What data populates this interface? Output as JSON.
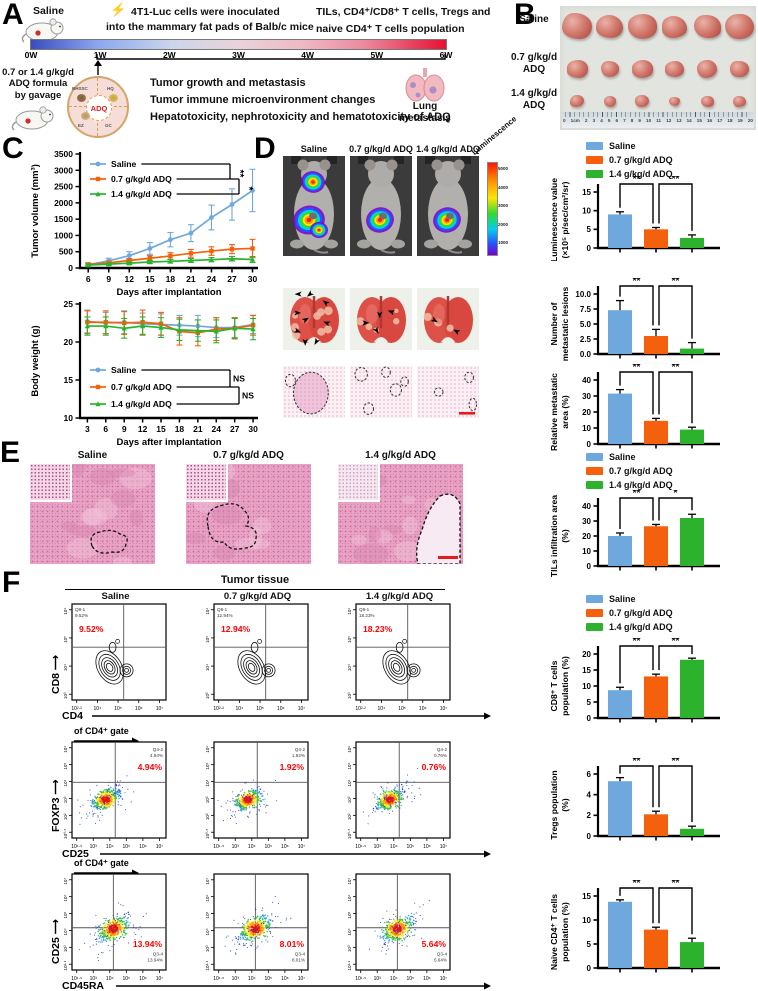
{
  "groups": {
    "names": [
      "Saline",
      "0.7 g/kg/d ADQ",
      "1.4 g/kg/d ADQ"
    ],
    "colors": [
      "#6FA8DC",
      "#F4600C",
      "#2CB22C"
    ]
  },
  "panelA": {
    "label": "A",
    "mouse1_caption": "Saline",
    "bolt_icon": "⚡",
    "inoculation_line1": "4T1-Luc cells were inoculated",
    "inoculation_line2": "into the mammary fat pads  of Balb/c mice",
    "right_line1": "TILs, CD4⁺/CD8⁺ T cells, Tregs and",
    "right_line2": "naive CD4⁺ T cells population",
    "timeline_ticks": [
      "0W",
      "1W",
      "2W",
      "3W",
      "4W",
      "5W",
      "6W"
    ],
    "gavage_lines": [
      "0.7 or 1.4 g/kg/d",
      "ADQ formula",
      "by gavage"
    ],
    "adq_center_label": "ADQ",
    "adq_segment_labels": [
      "BHSSC",
      "HQ",
      "EZ",
      "GC"
    ],
    "objective_lines": [
      "Tumor growth and metastasis",
      "Tumor immune microenvironment changes",
      "Hepatotoxicity, nephrotoxicity and hematotoxicity of ADQ"
    ],
    "lung_caption_line1": "Lung",
    "lung_caption_line2": "metastasis"
  },
  "panelB": {
    "label": "B",
    "row_labels": [
      [
        "Saline"
      ],
      [
        "0.7 g/kg/d",
        "ADQ"
      ],
      [
        "1.4 g/kg/d",
        "ADQ"
      ]
    ],
    "ruler_numbers": [
      "0",
      "1cm",
      "2",
      "3",
      "4",
      "5",
      "6",
      "7",
      "8",
      "9",
      "10",
      "11",
      "12",
      "13",
      "14",
      "15",
      "16",
      "17",
      "18",
      "19",
      "20"
    ],
    "tumor_sizes": [
      [
        30,
        27,
        29,
        25,
        27,
        29
      ],
      [
        21,
        18,
        21,
        19,
        20,
        19
      ],
      [
        14,
        12,
        14,
        11,
        13,
        13
      ]
    ]
  },
  "panelC": {
    "label": "C"
  },
  "panelD": {
    "label": "D",
    "col_labels": [
      "Saline",
      "0.7 g/kg/d ADQ",
      "1.4 g/kg/d ADQ"
    ],
    "colorbar_title": "Luminescence",
    "colorbar_ticks": [
      "5000",
      "4000",
      "3000",
      "2000",
      "1000"
    ],
    "mice_signals": [
      {
        "chest": true,
        "abdomen": true
      },
      {
        "chest": false,
        "abdomen": true
      },
      {
        "chest": false,
        "abdomen": true
      }
    ],
    "lung_arrow_counts": [
      9,
      4,
      2
    ]
  },
  "panelE": {
    "label": "E",
    "col_labels": [
      "Saline",
      "0.7 g/kg/d ADQ",
      "1.4 g/kg/d ADQ"
    ]
  },
  "panelF": {
    "label": "F",
    "header": "Tumor tissue",
    "col_labels": [
      "Saline",
      "0.7 g/kg/d ADQ",
      "1.4 g/kg/d ADQ"
    ],
    "rows": [
      {
        "gate_label": "",
        "y_axis": "CD8",
        "x_axis": "CD4",
        "style": "contour",
        "quad_name": "Q8-1",
        "percents": [
          "9.52%",
          "12.94%",
          "18.23%"
        ],
        "x_ticks": [
          "10²·²",
          "10⁴",
          "10⁵",
          "10⁶",
          "10⁷"
        ],
        "y_ticks": [
          "10³",
          "10⁴",
          "10⁵",
          "10⁶"
        ]
      },
      {
        "gate_label": "of CD4⁺ gate",
        "y_axis": "FOXP3",
        "x_axis": "CD25",
        "style": "density",
        "quad_name": "Q4-2",
        "percents": [
          "4.94%",
          "1.92%",
          "0.76%"
        ],
        "x_ticks": [
          "10¹·⁵",
          "10³",
          "10⁴",
          "10⁵",
          "10⁶",
          "10⁷"
        ],
        "y_ticks": [
          "10⁰·⁵",
          "10²",
          "10³",
          "10⁴",
          "10⁵",
          "10⁶"
        ]
      },
      {
        "gate_label": "of CD4⁺ gate",
        "y_axis": "CD25",
        "x_axis": "CD45RA",
        "style": "density",
        "quad_name": "Q3-4",
        "percents": [
          "13.94%",
          "8.01%",
          "5.64%"
        ],
        "x_ticks": [
          "10¹·⁵",
          "10³",
          "10⁴",
          "10⁵",
          "10⁶",
          "10⁷"
        ],
        "y_ticks": [
          "10¹·¹",
          "10³",
          "10⁴",
          "10⁵",
          "10⁶",
          "10⁷"
        ]
      }
    ]
  },
  "chart_data": [
    {
      "id": "tumor_volume",
      "type": "line",
      "xlabel": "Days after implantation",
      "ylabel": "Tumor volume (mm³)",
      "x": [
        6,
        9,
        12,
        15,
        18,
        21,
        24,
        27,
        30
      ],
      "ylim": [
        0,
        3500
      ],
      "yticks": [
        0,
        500,
        1000,
        1500,
        2000,
        2500,
        3000,
        3500
      ],
      "legend_pos": "top",
      "sig_labels": [
        "**",
        "*"
      ],
      "sig_rotated": true,
      "series": [
        {
          "name": "Saline",
          "values": [
            100,
            220,
            380,
            600,
            870,
            1070,
            1550,
            1950,
            2380
          ],
          "errors": [
            60,
            80,
            120,
            180,
            220,
            260,
            380,
            480,
            650
          ]
        },
        {
          "name": "0.7 g/kg/d ADQ",
          "values": [
            110,
            160,
            230,
            300,
            370,
            450,
            520,
            580,
            600
          ],
          "errors": [
            40,
            50,
            60,
            80,
            100,
            120,
            130,
            140,
            280
          ]
        },
        {
          "name": "1.4 g/kg/d ADQ",
          "values": [
            90,
            120,
            150,
            185,
            205,
            230,
            255,
            285,
            260
          ],
          "errors": [
            30,
            35,
            40,
            50,
            55,
            60,
            65,
            70,
            90
          ]
        }
      ]
    },
    {
      "id": "body_weight",
      "type": "line",
      "xlabel": "Days after implantation",
      "ylabel": "Body weight (g)",
      "x": [
        3,
        6,
        9,
        12,
        15,
        18,
        21,
        24,
        27,
        30
      ],
      "ylim": [
        10,
        25
      ],
      "yticks": [
        10,
        15,
        20,
        25
      ],
      "legend_pos": "bottom",
      "sig_labels": [
        "NS",
        "NS"
      ],
      "sig_rotated": false,
      "series": [
        {
          "name": "Saline",
          "values": [
            22.7,
            22.5,
            22.6,
            22.4,
            22.3,
            22.2,
            22.1,
            21.9,
            21.9,
            22.3
          ],
          "errors": [
            1.5,
            1.4,
            1.5,
            1.4,
            1.4,
            1.3,
            1.4,
            1.3,
            1.3,
            1.2
          ]
        },
        {
          "name": "0.7 g/kg/d ADQ",
          "values": [
            22.6,
            22.6,
            22.5,
            22.6,
            22.4,
            21.4,
            21.2,
            21.7,
            21.8,
            22.2
          ],
          "errors": [
            1.5,
            1.5,
            1.5,
            1.6,
            1.5,
            1.8,
            1.7,
            1.5,
            1.4,
            1.3
          ]
        },
        {
          "name": "1.4 g/kg/d ADQ",
          "values": [
            22.1,
            22.1,
            21.8,
            22.1,
            21.9,
            21.6,
            21.5,
            21.4,
            21.8,
            21.7
          ],
          "errors": [
            1.2,
            1.2,
            1.3,
            1.2,
            1.3,
            1.4,
            1.4,
            1.5,
            1.3,
            1.4
          ]
        }
      ]
    },
    {
      "id": "luminescence",
      "type": "bar",
      "ylabel_lines": [
        "Luminescence value",
        "(×10⁵ p/sec/cm²/sr)"
      ],
      "values": [
        9.0,
        5.0,
        2.7
      ],
      "errors": [
        0.7,
        0.5,
        0.8
      ],
      "ymax": 15,
      "yticks": [
        "0",
        "5",
        "10",
        "15"
      ],
      "sig": [
        "**",
        "**"
      ]
    },
    {
      "id": "metastatic_lesions",
      "type": "bar",
      "ylabel_lines": [
        "Number of",
        "metastatic lesions"
      ],
      "values": [
        7.3,
        3.0,
        0.9
      ],
      "errors": [
        1.6,
        1.1,
        1.0
      ],
      "ymax": 10,
      "yticks": [
        "0.0",
        "2.5",
        "5.0",
        "7.5",
        "10.0"
      ],
      "sig": [
        "**",
        "**"
      ]
    },
    {
      "id": "metastatic_area",
      "type": "bar",
      "ylabel_lines": [
        "Relative metastatic",
        "area (%)"
      ],
      "values": [
        31.5,
        14.5,
        9.0
      ],
      "errors": [
        2.5,
        1.5,
        1.5
      ],
      "ymax": 40,
      "yticks": [
        "0",
        "10",
        "20",
        "30",
        "40"
      ],
      "sig": [
        "**",
        "**"
      ]
    },
    {
      "id": "tils",
      "type": "bar",
      "ylabel_lines": [
        "TILs infiltration area",
        "(%)"
      ],
      "values": [
        20,
        26.5,
        32
      ],
      "errors": [
        2.0,
        1.2,
        2.5
      ],
      "ymax": 40,
      "yticks": [
        "0",
        "10",
        "20",
        "30",
        "40"
      ],
      "sig": [
        "**",
        "*"
      ]
    },
    {
      "id": "cd8",
      "type": "bar",
      "ylabel_lines": [
        "CD8⁺ T cells",
        "population (%)"
      ],
      "values": [
        8.7,
        13.0,
        18.2
      ],
      "errors": [
        0.9,
        0.7,
        0.5
      ],
      "ymax": 20,
      "yticks": [
        "0",
        "5",
        "10",
        "15",
        "20"
      ],
      "sig": [
        "**",
        "**"
      ]
    },
    {
      "id": "tregs",
      "type": "bar",
      "ylabel_lines": [
        "Tregs population",
        "(%)"
      ],
      "values": [
        5.3,
        2.1,
        0.7
      ],
      "errors": [
        0.35,
        0.3,
        0.25
      ],
      "ymax": 6,
      "yticks": [
        "0",
        "2",
        "4",
        "6"
      ],
      "sig": [
        "**",
        "**"
      ]
    },
    {
      "id": "naive_cd4",
      "type": "bar",
      "ylabel_lines": [
        "Naive CD4⁺ T cells",
        "population (%)"
      ],
      "values": [
        13.8,
        8.0,
        5.4
      ],
      "errors": [
        0.4,
        0.5,
        0.8
      ],
      "ymax": 15,
      "yticks": [
        "0",
        "5",
        "10",
        "15"
      ],
      "sig": [
        "**",
        "**"
      ]
    }
  ]
}
